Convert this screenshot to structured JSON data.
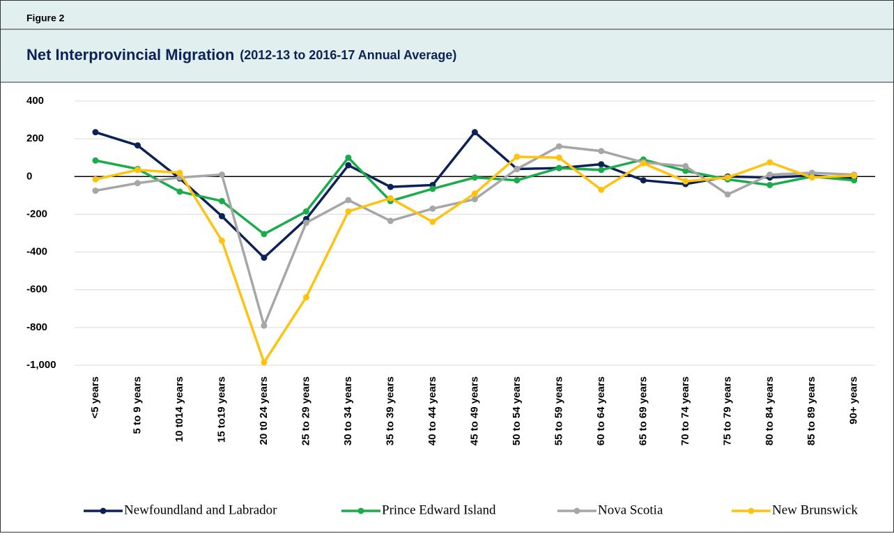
{
  "figure_label": "Figure 2",
  "chart_data": {
    "type": "line",
    "title": "Net Interprovincial Migration",
    "subtitle": "(2012-13 to 2016-17 Annual Average)",
    "categories": [
      "<5 years",
      "5 to 9 years",
      "10 t014 years",
      "15 to19 years",
      "20 t0 24 years",
      "25 to 29 years",
      "30 to 34 years",
      "35 to 39 years",
      "40 to 44 years",
      "45 to 49 years",
      "50 to 54 years",
      "55 to 59 years",
      "60 to 64 years",
      "65 to 69 years",
      "70 to 74 years",
      "75 to 79 years",
      "80 to 84 years",
      "85 to 89 years",
      "90+ years"
    ],
    "series": [
      {
        "name": "Newfoundland and Labrador",
        "color": "#0c2157",
        "values": [
          235,
          165,
          -10,
          -210,
          -430,
          -225,
          60,
          -55,
          -45,
          235,
          40,
          45,
          65,
          -20,
          -40,
          0,
          -5,
          5,
          -10
        ]
      },
      {
        "name": "Prince Edward Island",
        "color": "#1aab4b",
        "values": [
          85,
          40,
          -80,
          -130,
          -305,
          -185,
          100,
          -130,
          -65,
          -5,
          -20,
          45,
          35,
          90,
          30,
          -15,
          -45,
          0,
          -20
        ]
      },
      {
        "name": "Nova Scotia",
        "color": "#a6a6a6",
        "values": [
          -75,
          -35,
          -5,
          10,
          -790,
          -245,
          -125,
          -235,
          -170,
          -120,
          40,
          160,
          135,
          75,
          55,
          -95,
          10,
          20,
          10
        ]
      },
      {
        "name": "New Brunswick",
        "color": "#ffc20e",
        "values": [
          -15,
          35,
          20,
          -340,
          -985,
          -640,
          -185,
          -115,
          -240,
          -90,
          105,
          100,
          -70,
          70,
          -25,
          -5,
          75,
          -5,
          5
        ]
      }
    ],
    "ylim": [
      -1000,
      400
    ],
    "yticks": [
      400,
      200,
      0,
      -200,
      -400,
      -600,
      -800,
      {
        "value": -1000,
        "label": "-1,000"
      }
    ],
    "grid": true,
    "legend": "bottom"
  }
}
